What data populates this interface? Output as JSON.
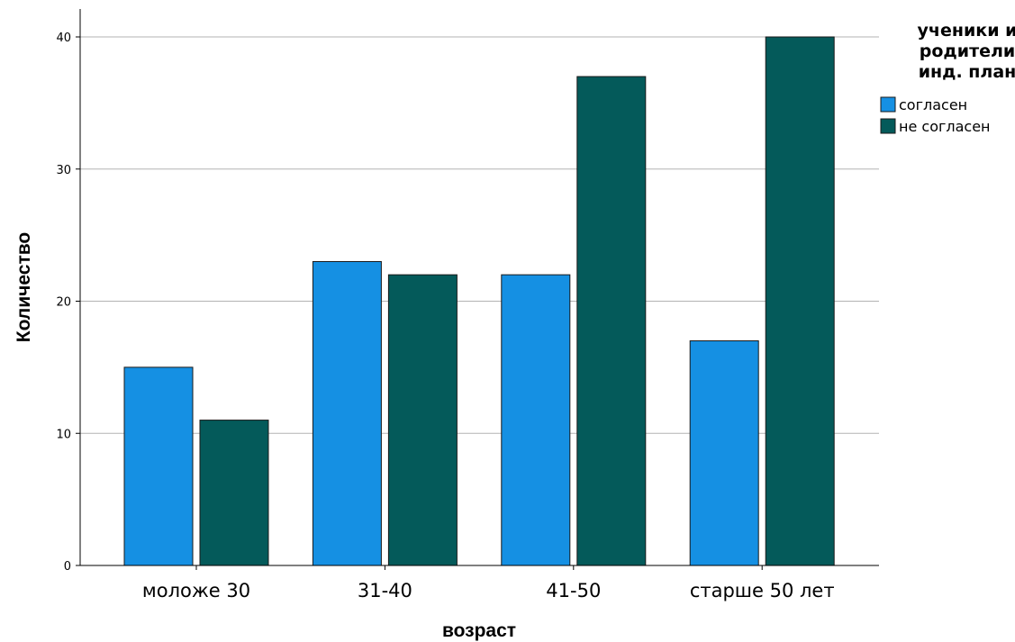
{
  "chart_data": {
    "type": "bar",
    "categories": [
      "моложе 30",
      "31-40",
      "41-50",
      "старше 50 лет"
    ],
    "series": [
      {
        "name": "согласен",
        "values": [
          15,
          23,
          22,
          17
        ],
        "color": "#1590E3"
      },
      {
        "name": "не согласен",
        "values": [
          11,
          22,
          37,
          40
        ],
        "color": "#045A5A"
      }
    ],
    "xlabel": "возраст",
    "ylabel": "Количество",
    "ylim": [
      0,
      40
    ],
    "yticks": [
      0,
      10,
      20,
      30,
      40
    ],
    "grid": true,
    "legend": {
      "title_lines": [
        "ученики и",
        "родители",
        "инд. план"
      ],
      "placement": "right"
    }
  }
}
